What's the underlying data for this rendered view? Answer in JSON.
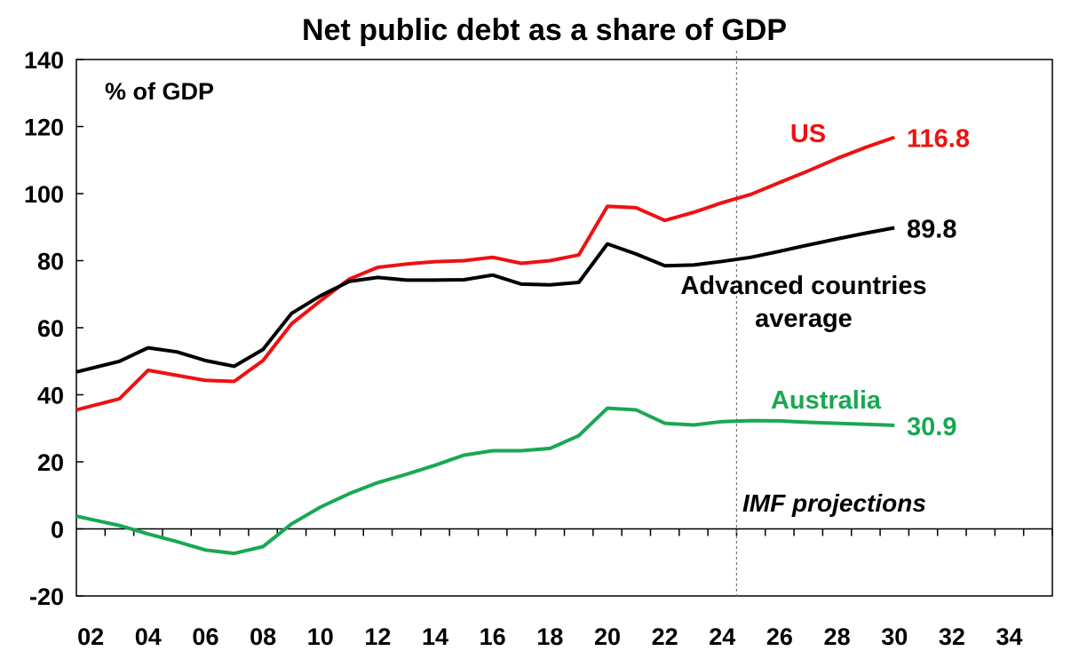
{
  "chart_data": {
    "type": "line",
    "title": "Net public debt as a share of GDP",
    "unit_label": "% of GDP",
    "projection_label": "IMF projections",
    "xlim": [
      2001.5,
      2035.5
    ],
    "ylim": [
      -20,
      140
    ],
    "y_ticks": [
      -20,
      0,
      20,
      40,
      60,
      80,
      100,
      120,
      140
    ],
    "x_tick_labels": [
      {
        "year": 2002,
        "label": "02"
      },
      {
        "year": 2004,
        "label": "04"
      },
      {
        "year": 2006,
        "label": "06"
      },
      {
        "year": 2008,
        "label": "08"
      },
      {
        "year": 2010,
        "label": "10"
      },
      {
        "year": 2012,
        "label": "12"
      },
      {
        "year": 2014,
        "label": "14"
      },
      {
        "year": 2016,
        "label": "16"
      },
      {
        "year": 2018,
        "label": "18"
      },
      {
        "year": 2020,
        "label": "20"
      },
      {
        "year": 2022,
        "label": "22"
      },
      {
        "year": 2024,
        "label": "24"
      },
      {
        "year": 2026,
        "label": "26"
      },
      {
        "year": 2028,
        "label": "28"
      },
      {
        "year": 2030,
        "label": "30"
      },
      {
        "year": 2032,
        "label": "32"
      },
      {
        "year": 2034,
        "label": "34"
      }
    ],
    "projection_start": 2024.5,
    "grid": false,
    "x": [
      2001.5,
      2003,
      2004,
      2005,
      2006,
      2007,
      2008,
      2009,
      2010,
      2011,
      2012,
      2013,
      2014,
      2015,
      2016,
      2017,
      2018,
      2019,
      2020,
      2021,
      2022,
      2023,
      2024,
      2025,
      2026,
      2027,
      2028,
      2029,
      2030
    ],
    "series": [
      {
        "name": "US",
        "color": "#ee1111",
        "end_label": "116.8",
        "values": [
          35.5,
          38.8,
          47.3,
          45.8,
          44.3,
          44.0,
          50.2,
          61.2,
          68.0,
          74.5,
          78.0,
          79.0,
          79.7,
          80.0,
          81.0,
          79.2,
          80.0,
          81.7,
          96.2,
          95.8,
          92.0,
          94.4,
          97.3,
          99.8,
          103.3,
          106.8,
          110.5,
          113.8,
          116.8
        ]
      },
      {
        "name": "Advanced countries average",
        "name_lines": [
          "Advanced countries",
          "average"
        ],
        "color": "#000000",
        "end_label": "89.8",
        "values": [
          46.8,
          50.0,
          54.0,
          52.8,
          50.2,
          48.5,
          53.5,
          64.3,
          69.5,
          73.8,
          75.0,
          74.2,
          74.2,
          74.3,
          75.7,
          73.0,
          72.8,
          73.5,
          85.0,
          82.0,
          78.5,
          78.7,
          79.8,
          81.0,
          82.8,
          84.7,
          86.5,
          88.2,
          89.8
        ]
      },
      {
        "name": "Australia",
        "color": "#18a852",
        "end_label": "30.9",
        "values": [
          3.8,
          1.0,
          -1.5,
          -3.8,
          -6.3,
          -7.3,
          -5.3,
          1.5,
          6.5,
          10.5,
          13.8,
          16.3,
          19.0,
          22.0,
          23.3,
          23.3,
          24.0,
          27.8,
          36.0,
          35.5,
          31.5,
          31.0,
          32.0,
          32.3,
          32.2,
          31.8,
          31.5,
          31.2,
          30.9
        ]
      }
    ]
  }
}
